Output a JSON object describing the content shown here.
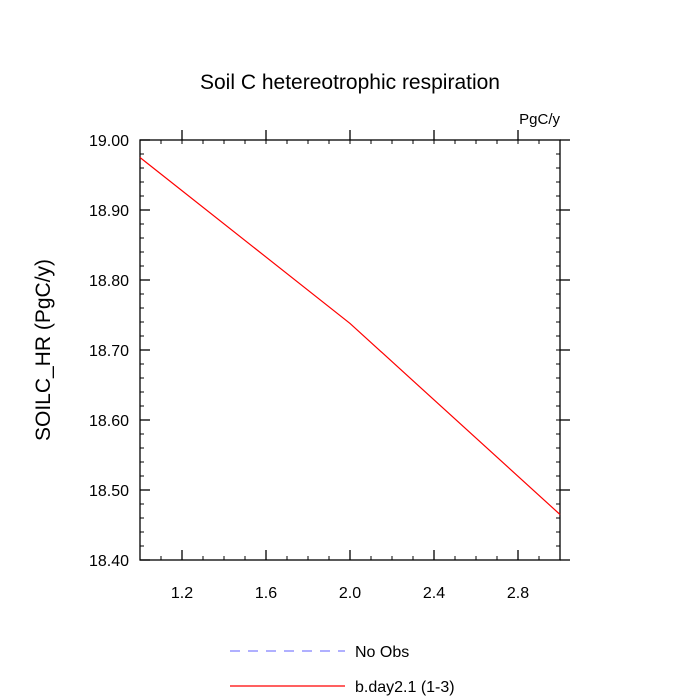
{
  "chart_data": {
    "type": "line",
    "title": "Soil C hetereotrophic respiration",
    "units_label": "PgC/y",
    "xlabel": "",
    "ylabel": "SOILC_HR  (PgC/y)",
    "xlim": [
      1.0,
      3.0
    ],
    "ylim": [
      18.4,
      19.0
    ],
    "x_ticks": [
      "1.2",
      "1.6",
      "2.0",
      "2.4",
      "2.8"
    ],
    "x_tick_values": [
      1.2,
      1.6,
      2.0,
      2.4,
      2.8
    ],
    "y_ticks": [
      "18.40",
      "18.50",
      "18.60",
      "18.70",
      "18.80",
      "18.90",
      "19.00"
    ],
    "y_tick_values": [
      18.4,
      18.5,
      18.6,
      18.7,
      18.8,
      18.9,
      19.0
    ],
    "series": [
      {
        "name": "b.day2.1 (1-3)",
        "color": "#ff0000",
        "dash": "solid",
        "x": [
          1,
          2,
          3
        ],
        "values": [
          18.975,
          18.738,
          18.465
        ]
      }
    ],
    "legend": [
      {
        "label": "No Obs",
        "color": "#8080ff",
        "dash": "dashed"
      },
      {
        "label": "b.day2.1 (1-3)",
        "color": "#ff0000",
        "dash": "solid"
      }
    ],
    "legend_position": "bottom-center"
  }
}
